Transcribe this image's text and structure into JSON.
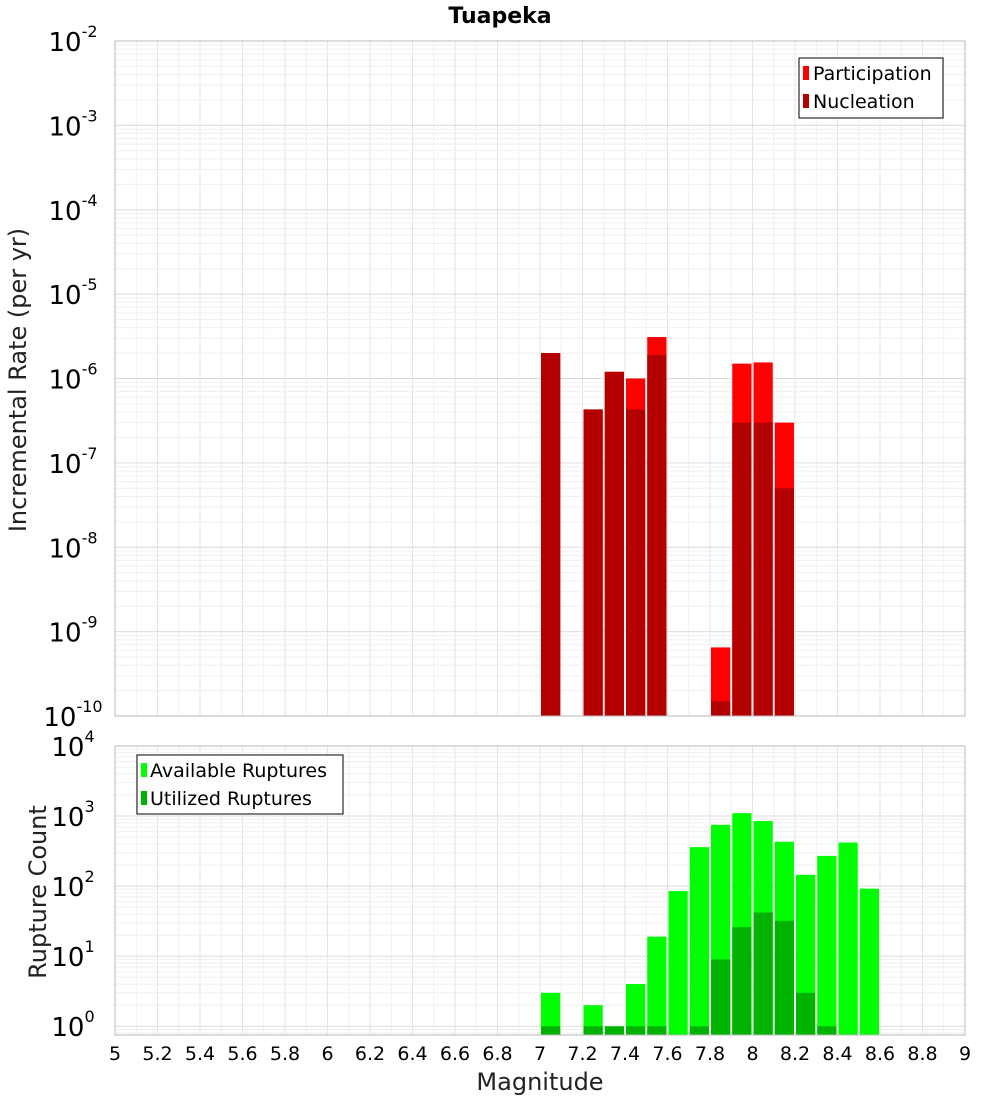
{
  "chart_data": [
    {
      "type": "bar",
      "title": "Tuapeka",
      "ylabel": "Incremental Rate (per yr)",
      "xlabel": "",
      "xlim": [
        5,
        9
      ],
      "ylim": [
        1e-10,
        0.01
      ],
      "yscale": "log",
      "bar_width": 0.1,
      "grid": true,
      "legend_position": "top-right",
      "series": [
        {
          "name": "Participation",
          "color": "#ff0000",
          "x": [
            7.05,
            7.25,
            7.35,
            7.45,
            7.55,
            7.85,
            7.95,
            8.05,
            8.15
          ],
          "values": [
            2e-06,
            4.3e-07,
            1.2e-06,
            1e-06,
            3.1e-06,
            6.5e-10,
            1.5e-06,
            1.55e-06,
            3e-07
          ]
        },
        {
          "name": "Nucleation",
          "color": "#b30000",
          "x": [
            7.05,
            7.25,
            7.35,
            7.45,
            7.55,
            7.85,
            7.95,
            8.05,
            8.15
          ],
          "values": [
            2e-06,
            4.3e-07,
            1.2e-06,
            4.3e-07,
            1.9e-06,
            1.5e-10,
            3e-07,
            3e-07,
            5e-08
          ]
        }
      ],
      "y_ticks": [
        {
          "base": "10",
          "exp": "-2"
        },
        {
          "base": "10",
          "exp": "-3"
        },
        {
          "base": "10",
          "exp": "-4"
        },
        {
          "base": "10",
          "exp": "-5"
        },
        {
          "base": "10",
          "exp": "-6"
        },
        {
          "base": "10",
          "exp": "-7"
        },
        {
          "base": "10",
          "exp": "-8"
        },
        {
          "base": "10",
          "exp": "-9"
        },
        {
          "base": "10",
          "exp": "-10"
        }
      ]
    },
    {
      "type": "bar",
      "title": "",
      "ylabel": "Rupture Count",
      "xlabel": "Magnitude",
      "xlim": [
        5,
        9
      ],
      "ylim": [
        0.75,
        10000
      ],
      "yscale": "log",
      "bar_width": 0.1,
      "grid": true,
      "legend_position": "top-left",
      "series": [
        {
          "name": "Available Ruptures",
          "color": "#00ff00",
          "x": [
            7.05,
            7.25,
            7.45,
            7.55,
            7.65,
            7.75,
            7.85,
            7.95,
            8.05,
            8.15,
            8.25,
            8.35,
            8.45,
            8.55
          ],
          "values": [
            3,
            2,
            4,
            19,
            85,
            360,
            750,
            1100,
            850,
            430,
            145,
            270,
            420,
            92
          ]
        },
        {
          "name": "Utilized Ruptures",
          "color": "#00b300",
          "x": [
            7.05,
            7.25,
            7.35,
            7.45,
            7.55,
            7.75,
            7.85,
            7.95,
            8.05,
            8.15,
            8.25,
            8.35
          ],
          "values": [
            1,
            1,
            1,
            1,
            1,
            1,
            9,
            26,
            42,
            32,
            3,
            1
          ]
        }
      ],
      "x_ticks": [
        "5",
        "5.2",
        "5.4",
        "5.6",
        "5.8",
        "6",
        "6.2",
        "6.4",
        "6.6",
        "6.8",
        "7",
        "7.2",
        "7.4",
        "7.6",
        "7.8",
        "8",
        "8.2",
        "8.4",
        "8.6",
        "8.8",
        "9"
      ],
      "y_ticks": [
        {
          "base": "10",
          "exp": "4"
        },
        {
          "base": "10",
          "exp": "3"
        },
        {
          "base": "10",
          "exp": "2"
        },
        {
          "base": "10",
          "exp": "1"
        },
        {
          "base": "10",
          "exp": "0"
        }
      ]
    }
  ]
}
